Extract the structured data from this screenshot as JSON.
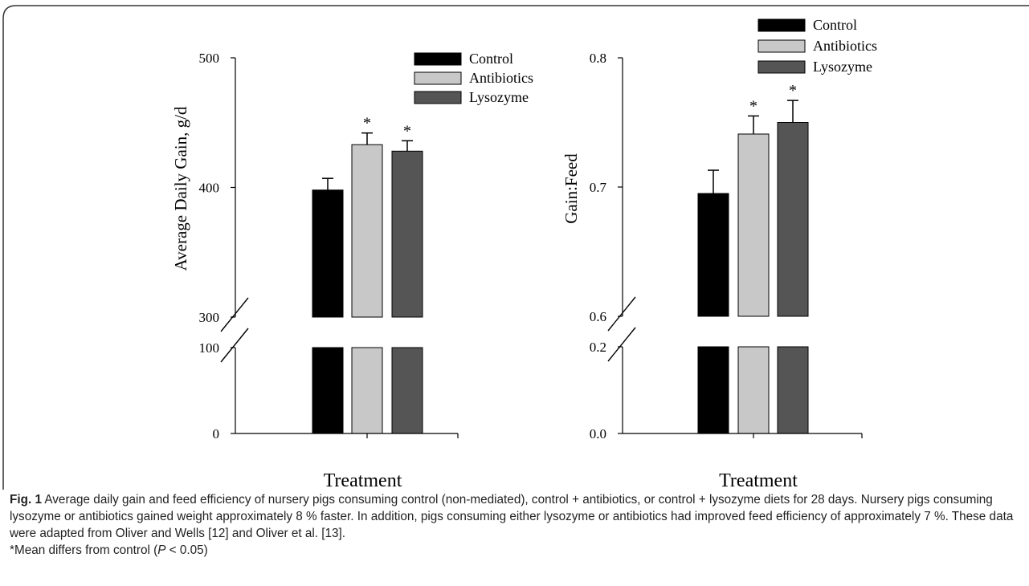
{
  "figure": {
    "caption_label": "Fig. 1",
    "caption_text": " Average daily gain and feed efficiency of nursery pigs consuming control (non-mediated), control + antibiotics, or control + lysozyme diets for 28 days. Nursery pigs consuming lysozyme or antibiotics gained weight approximately 8 % faster. In addition, pigs consuming either lysozyme or antibiotics had improved feed efficiency of approximately 7 %. These data were adapted from Oliver and Wells [12] and Oliver et al. [13].",
    "footnote_pre": "*Mean differs from control (",
    "footnote_p": "P",
    "footnote_post": " < 0.05)"
  },
  "colors": {
    "Control": "#000000",
    "Antibiotics": "#c8c8c8",
    "Lysozyme": "#555555",
    "axis": "#000000",
    "border": "#333333"
  },
  "chart_data": [
    {
      "type": "bar",
      "title": "",
      "xlabel": "Treatment",
      "ylabel": "Average Daily Gain, g/d",
      "categories": [
        "Control",
        "Antibiotics",
        "Lysozyme"
      ],
      "values": [
        398,
        433,
        428
      ],
      "errors": [
        9,
        9,
        8
      ],
      "significance": [
        "",
        "*",
        "*"
      ],
      "axis_break": {
        "lower": [
          0,
          100
        ],
        "upper": [
          300,
          500
        ]
      },
      "yticks": [
        0,
        100,
        300,
        400,
        500
      ],
      "ytick_labels": [
        "0",
        "100",
        "300",
        "400",
        "500"
      ],
      "legend": {
        "entries": [
          "Control",
          "Antibiotics",
          "Lysozyme"
        ],
        "position": "top-right"
      },
      "grid": false
    },
    {
      "type": "bar",
      "title": "",
      "xlabel": "Treatment",
      "ylabel": "Gain:Feed",
      "categories": [
        "Control",
        "Antibiotics",
        "Lysozyme"
      ],
      "values": [
        0.695,
        0.741,
        0.75
      ],
      "errors": [
        0.018,
        0.014,
        0.017
      ],
      "significance": [
        "",
        "*",
        "*"
      ],
      "axis_break": {
        "lower": [
          0.0,
          0.2
        ],
        "upper": [
          0.6,
          0.8
        ]
      },
      "yticks": [
        0.0,
        0.2,
        0.6,
        0.7,
        0.8
      ],
      "ytick_labels": [
        "0.0",
        "0.2",
        "0.6",
        "0.7",
        "0.8"
      ],
      "legend": {
        "entries": [
          "Control",
          "Antibiotics",
          "Lysozyme"
        ],
        "position": "top-right"
      },
      "grid": false
    }
  ]
}
